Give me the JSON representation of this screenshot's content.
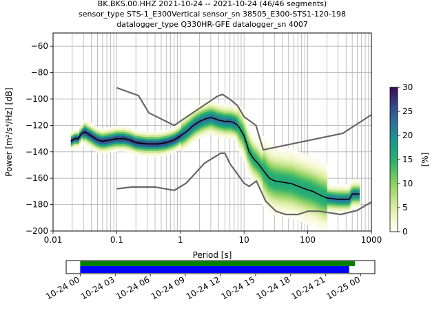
{
  "title_lines": [
    "BK.BKS.00.HHZ   2021-10-24 -- 2021-10-24  (46/46 segments)",
    "sensor_type STS-1_E300Vertical sensor_sn 38505_E300-STS1-120-198",
    "datalogger_type Q330HR-GFE datalogger_sn 4007"
  ],
  "chart_data": {
    "type": "heatmap",
    "xlabel": "Period [s]",
    "ylabel": "Power [m²/s⁴/Hz] [dB]",
    "xscale": "log",
    "xlim": [
      0.01,
      1000
    ],
    "ylim": [
      -200,
      -50
    ],
    "xticks": [
      0.01,
      0.1,
      1,
      10,
      100,
      1000
    ],
    "xtick_labels": [
      "0.01",
      "0.1",
      "1",
      "10",
      "100",
      "1000"
    ],
    "yticks": [
      -200,
      -180,
      -160,
      -140,
      -120,
      -100,
      -80,
      -60
    ],
    "ytick_labels": [
      "−200",
      "−180",
      "−160",
      "−140",
      "−120",
      "−100",
      "−80",
      "−60"
    ],
    "grid": true,
    "colorbar": {
      "label": "[%]",
      "min": 0,
      "max": 30,
      "ticks": [
        0,
        5,
        10,
        15,
        20,
        25,
        30
      ],
      "tick_labels": [
        "0",
        "5",
        "10",
        "15",
        "20",
        "25",
        "30"
      ],
      "colormap": "pqlx-like (white → yellow-green → green → teal → blue → purple)"
    },
    "series": [
      {
        "kind": "mode",
        "color": "#000000",
        "points": [
          [
            0.019,
            -132
          ],
          [
            0.022,
            -130
          ],
          [
            0.025,
            -130
          ],
          [
            0.028,
            -126
          ],
          [
            0.032,
            -125
          ],
          [
            0.04,
            -128
          ],
          [
            0.05,
            -131
          ],
          [
            0.06,
            -132
          ],
          [
            0.08,
            -131
          ],
          [
            0.1,
            -130
          ],
          [
            0.13,
            -130
          ],
          [
            0.16,
            -131
          ],
          [
            0.2,
            -133
          ],
          [
            0.3,
            -134
          ],
          [
            0.45,
            -134
          ],
          [
            0.6,
            -133
          ],
          [
            0.8,
            -131
          ],
          [
            1.0,
            -128
          ],
          [
            1.3,
            -124
          ],
          [
            1.6,
            -120
          ],
          [
            2.0,
            -117
          ],
          [
            2.5,
            -115
          ],
          [
            3.0,
            -114
          ],
          [
            3.5,
            -115
          ],
          [
            4.0,
            -116
          ],
          [
            5.0,
            -117
          ],
          [
            6.0,
            -117
          ],
          [
            7.0,
            -118
          ],
          [
            8.0,
            -120
          ],
          [
            9.0,
            -124
          ],
          [
            10,
            -128
          ],
          [
            11,
            -134
          ],
          [
            12,
            -140
          ],
          [
            14,
            -145
          ],
          [
            16,
            -148
          ],
          [
            18,
            -151
          ],
          [
            20,
            -154
          ],
          [
            25,
            -160
          ],
          [
            30,
            -162
          ],
          [
            40,
            -163
          ],
          [
            55,
            -164
          ],
          [
            70,
            -166
          ],
          [
            90,
            -168
          ],
          [
            120,
            -170
          ],
          [
            160,
            -173
          ],
          [
            200,
            -175
          ],
          [
            300,
            -176
          ],
          [
            450,
            -176
          ],
          [
            500,
            -172
          ],
          [
            550,
            -172
          ],
          [
            650,
            -172
          ]
        ]
      },
      {
        "kind": "noise-model-high",
        "color": "#666666",
        "points": [
          [
            0.1,
            -91.5
          ],
          [
            0.22,
            -97.4
          ],
          [
            0.32,
            -110.5
          ],
          [
            0.8,
            -120
          ],
          [
            3.8,
            -97.9
          ],
          [
            4.6,
            -96.5
          ],
          [
            6.3,
            -101
          ],
          [
            7.9,
            -105
          ],
          [
            10,
            -113.5
          ],
          [
            15.4,
            -120
          ],
          [
            20,
            -138.5
          ],
          [
            354.8,
            -126
          ],
          [
            1000,
            -112
          ]
        ]
      },
      {
        "kind": "noise-model-low",
        "color": "#666666",
        "points": [
          [
            0.1,
            -168
          ],
          [
            0.17,
            -166.7
          ],
          [
            0.4,
            -166.7
          ],
          [
            0.8,
            -169.2
          ],
          [
            1.24,
            -163.7
          ],
          [
            2.4,
            -148.6
          ],
          [
            4.3,
            -141.1
          ],
          [
            5.0,
            -141.1
          ],
          [
            6.0,
            -149
          ],
          [
            10,
            -163.8
          ],
          [
            12,
            -166.2
          ],
          [
            15.6,
            -162.1
          ],
          [
            21.9,
            -177.5
          ],
          [
            31.6,
            -185
          ],
          [
            45,
            -187.5
          ],
          [
            70,
            -187.5
          ],
          [
            101,
            -185
          ],
          [
            154,
            -185
          ],
          [
            328,
            -187.5
          ],
          [
            600,
            -184.4
          ],
          [
            1000,
            -178
          ]
        ]
      }
    ],
    "time_axis": {
      "tick_labels": [
        "10-24 00",
        "10-24 03",
        "10-24 06",
        "10-24 09",
        "10-24 12",
        "10-24 15",
        "10-24 18",
        "10-24 21",
        "10-25 00"
      ],
      "range_hours": [
        -1.2,
        25.2
      ],
      "data_coverage_hours": [
        0,
        23.5
      ],
      "gaps_coverage_hours": [
        0,
        23.0
      ],
      "data_color": "#008000",
      "gaps_color": "#0000ff"
    }
  }
}
